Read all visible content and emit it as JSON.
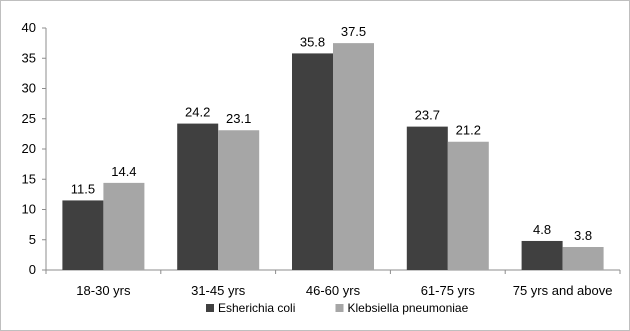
{
  "chart_data": {
    "type": "bar",
    "categories": [
      "18-30 yrs",
      "31-45 yrs",
      "46-60 yrs",
      "61-75 yrs",
      "75 yrs and above"
    ],
    "series": [
      {
        "name": "Esherichia coli",
        "values": [
          11.5,
          24.2,
          35.8,
          23.7,
          4.8
        ],
        "color": "#404040"
      },
      {
        "name": "Klebsiella pneumoniae",
        "values": [
          14.4,
          23.1,
          37.5,
          21.2,
          3.8
        ],
        "color": "#a6a6a6"
      }
    ],
    "ylim": [
      0,
      40
    ],
    "yticks": [
      0,
      5,
      10,
      15,
      20,
      25,
      30,
      35,
      40
    ],
    "title": "",
    "xlabel": "",
    "ylabel": "",
    "grid": false,
    "legend_position": "bottom"
  }
}
